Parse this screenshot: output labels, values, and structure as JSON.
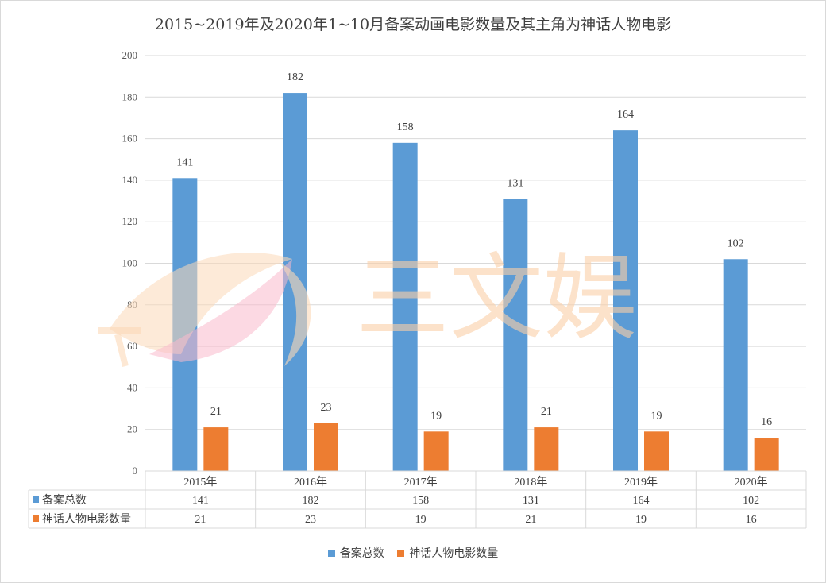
{
  "chart_data": {
    "type": "bar",
    "title": "2015~2019年及2020年1~10月备案动画电影数量及其主角为神话人物电影",
    "categories": [
      "2015年",
      "2016年",
      "2017年",
      "2018年",
      "2019年",
      "2020年"
    ],
    "series": [
      {
        "name": "备案总数",
        "values": [
          141,
          182,
          158,
          131,
          164,
          102
        ],
        "color": "#5b9bd5"
      },
      {
        "name": "神话人物电影数量",
        "values": [
          21,
          23,
          19,
          21,
          19,
          16
        ],
        "color": "#ed7d31"
      }
    ],
    "ylim": [
      0,
      200
    ],
    "yticks": [
      0,
      20,
      40,
      60,
      80,
      100,
      120,
      140,
      160,
      180,
      200
    ],
    "grid": true,
    "data_table": true,
    "legend_position": "bottom"
  },
  "watermark": {
    "text": "三文娱",
    "colors": [
      "#fbd3b0",
      "#f7b6c8"
    ]
  }
}
